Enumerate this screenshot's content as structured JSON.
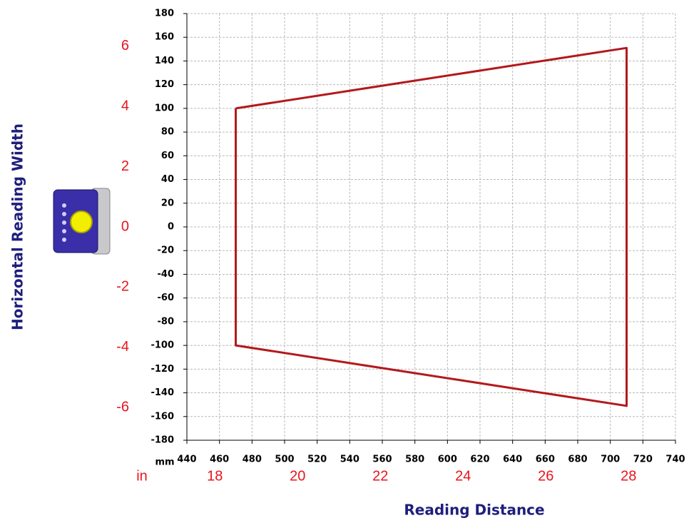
{
  "chart_data": {
    "type": "line",
    "x_label": "Reading Distance",
    "y_label": "Horizontal Reading Width",
    "x_unit": "mm",
    "x2_unit": "in",
    "x": [
      470,
      710,
      710,
      470,
      470
    ],
    "series": [
      {
        "color": "#b3191c",
        "values": [
          100,
          151,
          -151,
          -100,
          100
        ]
      }
    ],
    "xlim": [
      440,
      740
    ],
    "xticks": [
      440,
      460,
      480,
      500,
      520,
      540,
      560,
      580,
      600,
      620,
      640,
      660,
      680,
      700,
      720,
      740
    ],
    "ylim": [
      -180,
      180
    ],
    "yticks": [
      -180,
      -160,
      -140,
      -120,
      -100,
      -80,
      -60,
      -40,
      -20,
      0,
      20,
      40,
      60,
      80,
      100,
      120,
      140,
      160,
      180
    ],
    "x2lim": [
      17.323,
      29.134
    ],
    "x2ticks": [
      18,
      20,
      22,
      24,
      26,
      28
    ],
    "y2lim": [
      -7.087,
      7.087
    ],
    "y2ticks": [
      -6,
      -4,
      -2,
      0,
      2,
      4,
      6
    ],
    "grid": true
  }
}
